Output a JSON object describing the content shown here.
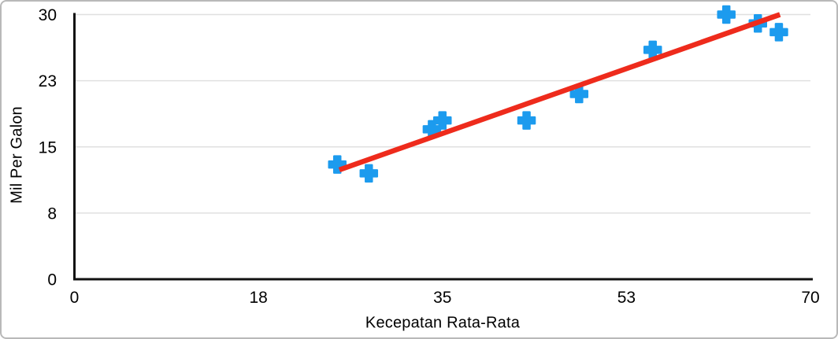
{
  "colors": {
    "background": "#ffffff",
    "frame_border": "#b9b9b9",
    "marker_blue": "#1c9bee",
    "trend_red": "#ee2b1c",
    "gridline_gray": "#e0e0e0",
    "axis_black": "#111111",
    "text_black": "#000000"
  },
  "chart_data": {
    "type": "scatter",
    "title": "",
    "xlabel": "Kecepatan Rata-Rata",
    "ylabel": "Mil Per Galon",
    "xlim": [
      0,
      70
    ],
    "ylim": [
      0,
      30
    ],
    "grid": "horizontal-only",
    "legend_position": "none",
    "x_ticks": [
      {
        "value": 0,
        "label": "0"
      },
      {
        "value": 17.5,
        "label": "18"
      },
      {
        "value": 35,
        "label": "35"
      },
      {
        "value": 52.5,
        "label": "53"
      },
      {
        "value": 70,
        "label": "70"
      }
    ],
    "y_ticks": [
      {
        "value": 0,
        "label": "0"
      },
      {
        "value": 7.5,
        "label": "8"
      },
      {
        "value": 15,
        "label": "15"
      },
      {
        "value": 22.5,
        "label": "23"
      },
      {
        "value": 30,
        "label": "30"
      }
    ],
    "series": [
      {
        "name": "mil-per-galon",
        "marker": "plus",
        "color": "#1c9bee",
        "points": [
          [
            25,
            13
          ],
          [
            28,
            12
          ],
          [
            34,
            17
          ],
          [
            35,
            18
          ],
          [
            43,
            18
          ],
          [
            48,
            21
          ],
          [
            55,
            26
          ],
          [
            62,
            30
          ],
          [
            65,
            29
          ],
          [
            67,
            28
          ]
        ]
      }
    ],
    "trendline": {
      "type": "linear",
      "color": "#ee2b1c",
      "x1": 25.2,
      "y1": 12.4,
      "x2": 67.1,
      "y2": 30
    }
  }
}
